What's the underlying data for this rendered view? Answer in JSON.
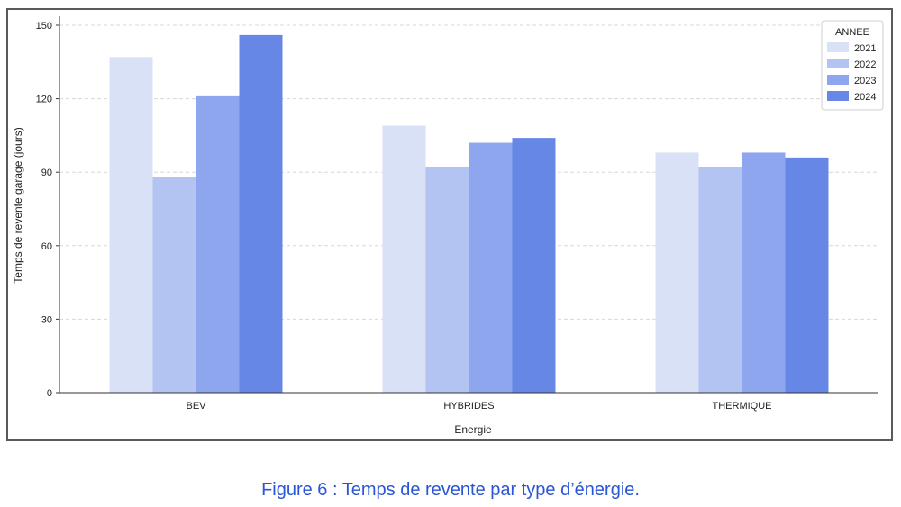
{
  "caption": "Figure 6 : Temps de revente par type d’énergie.",
  "chart_data": {
    "type": "bar",
    "categories": [
      "BEV",
      "HYBRIDES",
      "THERMIQUE"
    ],
    "series": [
      {
        "name": "2021",
        "values": [
          137,
          109,
          98
        ],
        "color": "#d9e1f7"
      },
      {
        "name": "2022",
        "values": [
          88,
          92,
          92
        ],
        "color": "#b3c4f2"
      },
      {
        "name": "2023",
        "values": [
          121,
          102,
          98
        ],
        "color": "#8ea6ee"
      },
      {
        "name": "2024",
        "values": [
          146,
          104,
          96
        ],
        "color": "#6787e6"
      }
    ],
    "xlabel": "Energie",
    "ylabel": "Temps de revente garage (jours)",
    "ylim": [
      0,
      150
    ],
    "yticks": [
      0,
      30,
      60,
      90,
      120,
      150
    ],
    "grid": "horizontal dashed",
    "legend": {
      "title": "ANNEE",
      "placement": "top-right"
    }
  }
}
